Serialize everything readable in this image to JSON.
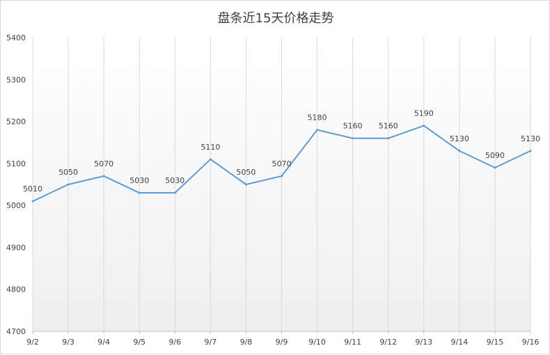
{
  "chart_data": {
    "type": "line",
    "title": "盘条近15天价格走势",
    "xlabel": "",
    "ylabel": "",
    "categories": [
      "9/2",
      "9/3",
      "9/4",
      "9/5",
      "9/6",
      "9/7",
      "9/8",
      "9/9",
      "9/10",
      "9/11",
      "9/12",
      "9/13",
      "9/14",
      "9/15",
      "9/16"
    ],
    "series": [
      {
        "values": [
          5010,
          5050,
          5070,
          5030,
          5030,
          5110,
          5050,
          5070,
          5180,
          5160,
          5160,
          5190,
          5130,
          5090,
          5130
        ],
        "color": "#5b9bd5"
      }
    ],
    "ylim": [
      4700,
      5400
    ],
    "yticks": [
      4700,
      4800,
      4900,
      5000,
      5100,
      5200,
      5300,
      5400
    ],
    "data_labels": true,
    "vertical_gridlines": true,
    "horizontal_gridlines": false,
    "legend": "none",
    "plot_background": "gradient-white-to-light-gray"
  }
}
